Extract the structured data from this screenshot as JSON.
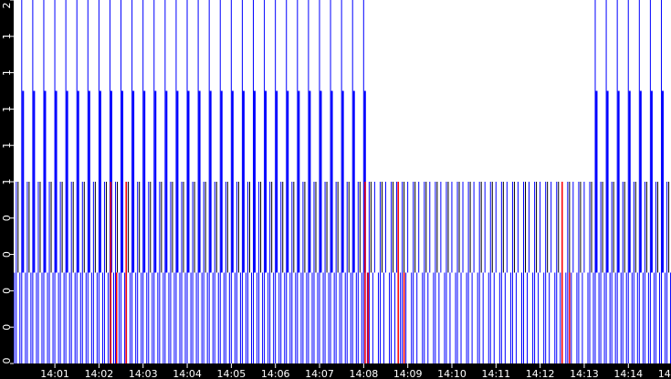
{
  "chart_data": {
    "type": "bar",
    "title": "",
    "xlabel": "",
    "ylabel": "",
    "ylim": [
      0,
      2
    ],
    "xlim": [
      "14:00:04",
      "14:14:58"
    ],
    "grid": false,
    "y_tick_labels": [
      "0",
      "0",
      "0",
      "0",
      "0",
      "1",
      "1",
      "1",
      "1",
      "1",
      "2"
    ],
    "y_tick_values": [
      0,
      0.2,
      0.4,
      0.6,
      0.8,
      1.0,
      1.2,
      1.4,
      1.6,
      1.8,
      2.0
    ],
    "x_tick_labels": [
      "14:01",
      "14:02",
      "14:03",
      "14:04",
      "14:05",
      "14:06",
      "14:07",
      "14:08",
      "14:09",
      "14:10",
      "14:11",
      "14:12",
      "14:13",
      "14:14",
      "14:15"
    ],
    "colors": {
      "primary": "#0000ff",
      "highlight": "#ff0000",
      "secondary": "#000000",
      "background": "#ffffff",
      "axis": "#000000"
    },
    "cycles": {
      "period_s": 15,
      "start": "14:00:05",
      "end": "14:14:50",
      "peak_values": {
        "default": 2,
        "14:08:00-14:13:00": 1
      },
      "levels": [
        2,
        1.5,
        1,
        0.5
      ]
    },
    "red_events": [
      {
        "time": "14:02:16",
        "value": 1
      },
      {
        "time": "14:02:24",
        "value": 0.5
      },
      {
        "time": "14:02:37",
        "value": 1
      },
      {
        "time": "14:08:02",
        "value": 1
      },
      {
        "time": "14:08:06",
        "value": 0.5
      },
      {
        "time": "14:08:47",
        "value": 1
      },
      {
        "time": "14:08:55",
        "value": 0.5
      },
      {
        "time": "14:12:30",
        "value": 1
      },
      {
        "time": "14:12:40",
        "value": 0.5
      }
    ]
  }
}
